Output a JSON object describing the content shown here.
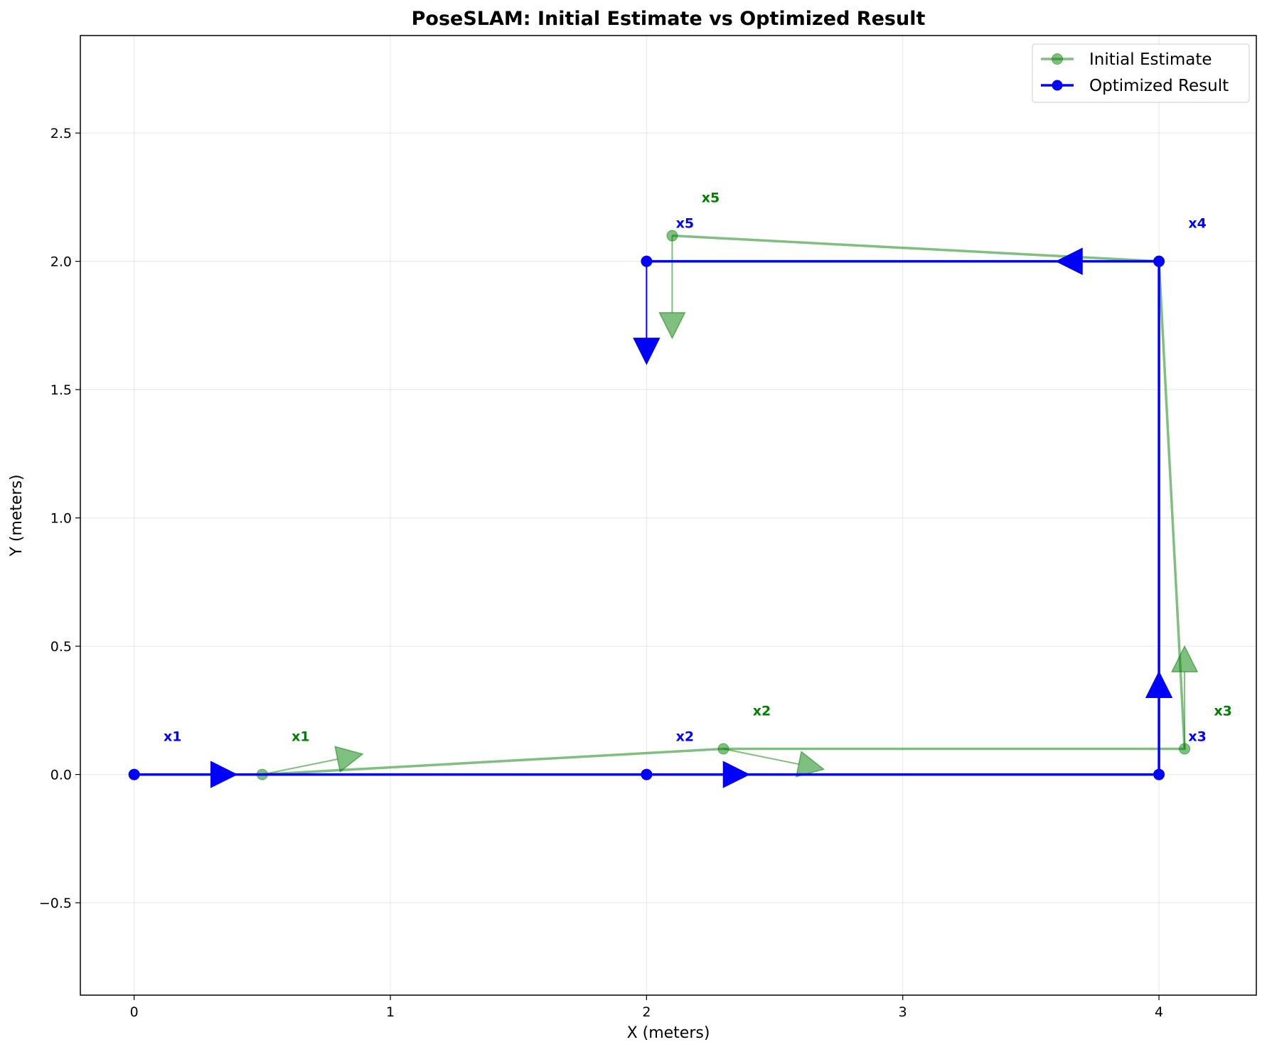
{
  "chart_data": {
    "type": "line",
    "title": "PoseSLAM: Initial Estimate vs Optimized Result",
    "xlabel": "X (meters)",
    "ylabel": "Y (meters)",
    "xlim": [
      -0.21,
      4.38
    ],
    "ylim": [
      -0.86,
      2.88
    ],
    "xticks": [
      {
        "value": 0,
        "label": "0"
      },
      {
        "value": 1,
        "label": "1"
      },
      {
        "value": 2,
        "label": "2"
      },
      {
        "value": 3,
        "label": "3"
      },
      {
        "value": 4,
        "label": "4"
      }
    ],
    "yticks": [
      {
        "value": -0.5,
        "label": "−0.5"
      },
      {
        "value": 0.0,
        "label": "0.0"
      },
      {
        "value": 0.5,
        "label": "0.5"
      },
      {
        "value": 1.0,
        "label": "1.0"
      },
      {
        "value": 1.5,
        "label": "1.5"
      },
      {
        "value": 2.0,
        "label": "2.0"
      },
      {
        "value": 2.5,
        "label": "2.5"
      }
    ],
    "grid": true,
    "legend_position": "top-right",
    "series": [
      {
        "name": "Initial Estimate",
        "color": "#008000",
        "alpha": 0.5,
        "points": [
          {
            "label": "x1",
            "x": 0.5,
            "y": 0.0,
            "theta_deg": 11.5
          },
          {
            "label": "x2",
            "x": 2.3,
            "y": 0.1,
            "theta_deg": -11.5
          },
          {
            "label": "x3",
            "x": 4.1,
            "y": 0.1,
            "theta_deg": 90
          },
          {
            "label": "x4",
            "x": 4.0,
            "y": 2.0,
            "theta_deg": 180
          },
          {
            "label": "x5",
            "x": 2.1,
            "y": 2.1,
            "theta_deg": -90
          }
        ]
      },
      {
        "name": "Optimized Result",
        "color": "#0000ff",
        "alpha": 1.0,
        "points": [
          {
            "label": "x1",
            "x": 0.0,
            "y": 0.0,
            "theta_deg": 0
          },
          {
            "label": "x2",
            "x": 2.0,
            "y": 0.0,
            "theta_deg": 0
          },
          {
            "label": "x3",
            "x": 4.0,
            "y": 0.0,
            "theta_deg": 90
          },
          {
            "label": "x4",
            "x": 4.0,
            "y": 2.0,
            "theta_deg": 180
          },
          {
            "label": "x5",
            "x": 2.0,
            "y": 2.0,
            "theta_deg": -90
          }
        ]
      }
    ],
    "labels": [
      {
        "series": 0,
        "text": "x1",
        "x": 0.65,
        "y": 0.15
      },
      {
        "series": 0,
        "text": "x2",
        "x": 2.45,
        "y": 0.25
      },
      {
        "series": 0,
        "text": "x3",
        "x": 4.25,
        "y": 0.25
      },
      {
        "series": 0,
        "text": "x5",
        "x": 2.25,
        "y": 2.25
      },
      {
        "series": 1,
        "text": "x1",
        "x": 0.15,
        "y": 0.15
      },
      {
        "series": 1,
        "text": "x2",
        "x": 2.15,
        "y": 0.15
      },
      {
        "series": 1,
        "text": "x3",
        "x": 4.15,
        "y": 0.15
      },
      {
        "series": 1,
        "text": "x4",
        "x": 4.15,
        "y": 2.15
      },
      {
        "series": 1,
        "text": "x5",
        "x": 2.15,
        "y": 2.15
      }
    ]
  }
}
